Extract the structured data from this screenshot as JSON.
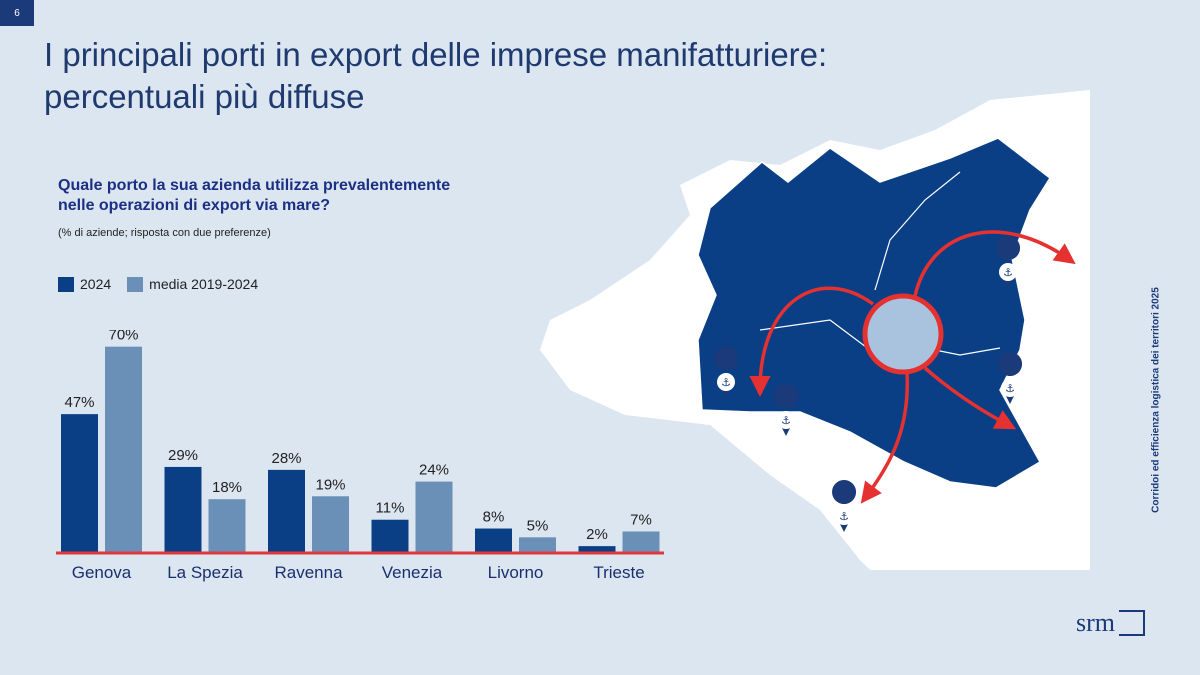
{
  "page_number": "6",
  "title_line1": "I principali porti in export delle imprese manifatturiere:",
  "title_line2": "percentuali più diffuse",
  "question_line1": "Quale porto la sua azienda utilizza prevalentemente",
  "question_line2": "nelle operazioni di export via mare?",
  "note": "(% di aziende; risposta con due preferenze)",
  "side_text": "Corridoi ed efficienza logistica dei territori 2025",
  "logo_text": "srm",
  "colors": {
    "series_2024": "#0a3f86",
    "series_avg": "#6b90b8",
    "baseline": "#e0383a",
    "map_region": "#0a3f86",
    "arrow": "#e5312f",
    "background": "#dce6f1"
  },
  "chart_data": {
    "type": "bar",
    "categories": [
      "Genova",
      "La Spezia",
      "Ravenna",
      "Venezia",
      "Livorno",
      "Trieste"
    ],
    "series": [
      {
        "name": "2024",
        "values": [
          47,
          29,
          28,
          11,
          8,
          2
        ]
      },
      {
        "name": "media 2019-2024",
        "values": [
          70,
          18,
          19,
          24,
          5,
          7
        ]
      }
    ],
    "value_suffix": "%",
    "ylim": [
      0,
      75
    ],
    "grid": false,
    "legend_position": "top-left"
  }
}
